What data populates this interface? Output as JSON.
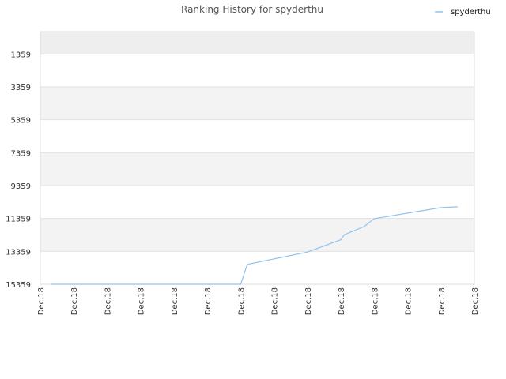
{
  "chart_data": {
    "type": "line",
    "title": "Ranking History for spyderthu",
    "xlabel": "",
    "ylabel": "",
    "y_inverted": true,
    "ylim": [
      15359,
      0
    ],
    "y_ticks": [
      1359,
      3359,
      5359,
      7359,
      9359,
      11359,
      13359,
      15359
    ],
    "x_tick_labels": [
      "Dec.18",
      "Dec.18",
      "Dec.18",
      "Dec.18",
      "Dec.18",
      "Dec.18",
      "Dec.18",
      "Dec.18",
      "Dec.18",
      "Dec.18",
      "Dec.18",
      "Dec.18",
      "Dec.18",
      "Dec.18"
    ],
    "legend": {
      "position": "top-right"
    },
    "grid": true,
    "series": [
      {
        "name": "spyderthu",
        "color": "#90c4f0",
        "points": [
          {
            "x": 0.3,
            "y": 15359
          },
          {
            "x": 3.0,
            "y": 15359
          },
          {
            "x": 6.0,
            "y": 15359
          },
          {
            "x": 6.2,
            "y": 14150
          },
          {
            "x": 8.0,
            "y": 13400
          },
          {
            "x": 9.0,
            "y": 12650
          },
          {
            "x": 9.1,
            "y": 12350
          },
          {
            "x": 9.7,
            "y": 11850
          },
          {
            "x": 10.0,
            "y": 11370
          },
          {
            "x": 12.0,
            "y": 10700
          },
          {
            "x": 12.5,
            "y": 10650
          }
        ]
      }
    ]
  }
}
